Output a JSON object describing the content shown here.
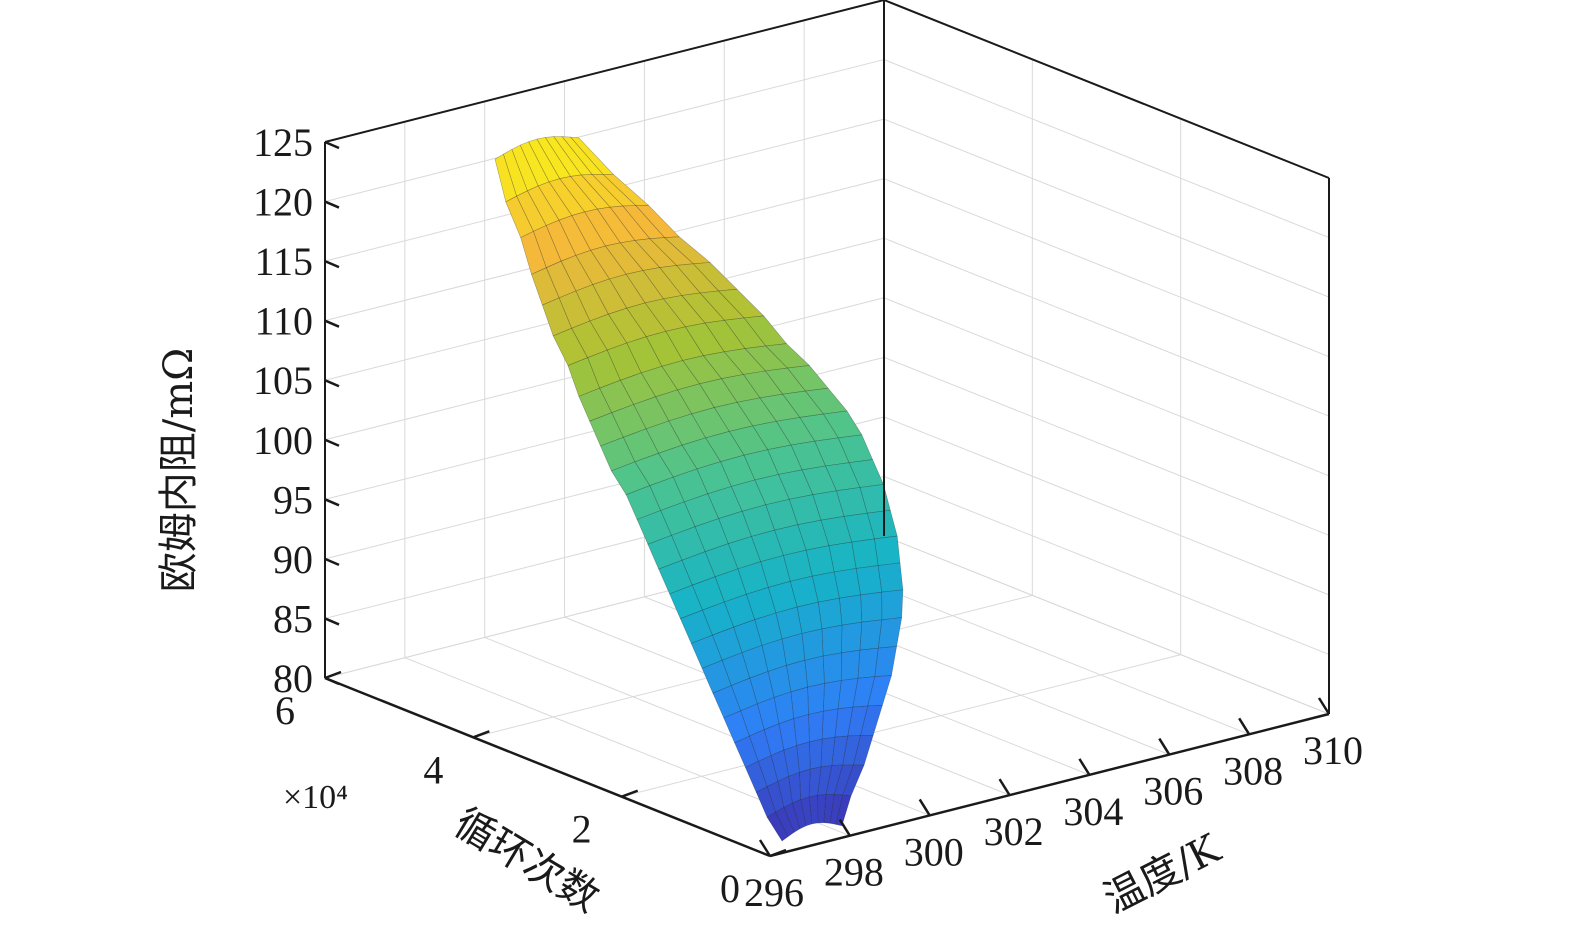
{
  "chart_data": {
    "type": "surface3d",
    "zlabel": "欧姆内阻/mΩ",
    "xlabel": "温度/K",
    "ylabel": "循环次数",
    "y_multiplier": "×10⁴",
    "xlim": [
      296,
      310
    ],
    "ylim": [
      0,
      6
    ],
    "zlim": [
      80,
      125
    ],
    "xticks": [
      296,
      298,
      300,
      302,
      304,
      306,
      308,
      310
    ],
    "yticks": [
      0,
      2,
      4,
      6
    ],
    "zticks": [
      80,
      85,
      90,
      95,
      100,
      105,
      110,
      115,
      120,
      125
    ],
    "colormap": [
      "#3e26a8",
      "#2f7ff8",
      "#16b3c8",
      "#4dc48f",
      "#a7c334",
      "#f5b83b",
      "#f9f417"
    ],
    "grid": true,
    "surface": {
      "cycles_x1e4": [
        0.0,
        0.2,
        0.4,
        0.6,
        0.8,
        1.0,
        1.2,
        1.4,
        1.6,
        1.8,
        2.0,
        2.2,
        2.4,
        2.6,
        2.8,
        3.0,
        3.2,
        3.4,
        3.6,
        3.8,
        4.0,
        4.2,
        4.4,
        4.6,
        4.8,
        5.0
      ],
      "temp_min_K": [
        296.3,
        296.3,
        296.4,
        296.5,
        296.6,
        296.7,
        296.8,
        296.9,
        297.0,
        297.1,
        297.2,
        297.3,
        297.4,
        297.5,
        297.6,
        297.6,
        297.7,
        297.8,
        297.9,
        298.0,
        298.0,
        298.1,
        298.2,
        298.3,
        298.3,
        298.4
      ],
      "temp_max_K": [
        297.8,
        298.4,
        299.1,
        299.7,
        300.3,
        300.9,
        301.4,
        301.9,
        302.3,
        302.6,
        302.9,
        303.1,
        303.3,
        303.4,
        303.5,
        303.5,
        303.4,
        303.3,
        303.1,
        302.9,
        302.6,
        302.3,
        301.9,
        301.5,
        301.0,
        300.5
      ],
      "resistance_mOhm": [
        81.0,
        82.5,
        84.0,
        85.5,
        87.0,
        88.5,
        90.0,
        91.5,
        93.0,
        94.5,
        96.0,
        97.5,
        99.0,
        100.5,
        102.0,
        103.5,
        105.0,
        106.5,
        108.0,
        110.0,
        112.0,
        114.0,
        116.0,
        118.5,
        121.0,
        124.0
      ]
    }
  }
}
